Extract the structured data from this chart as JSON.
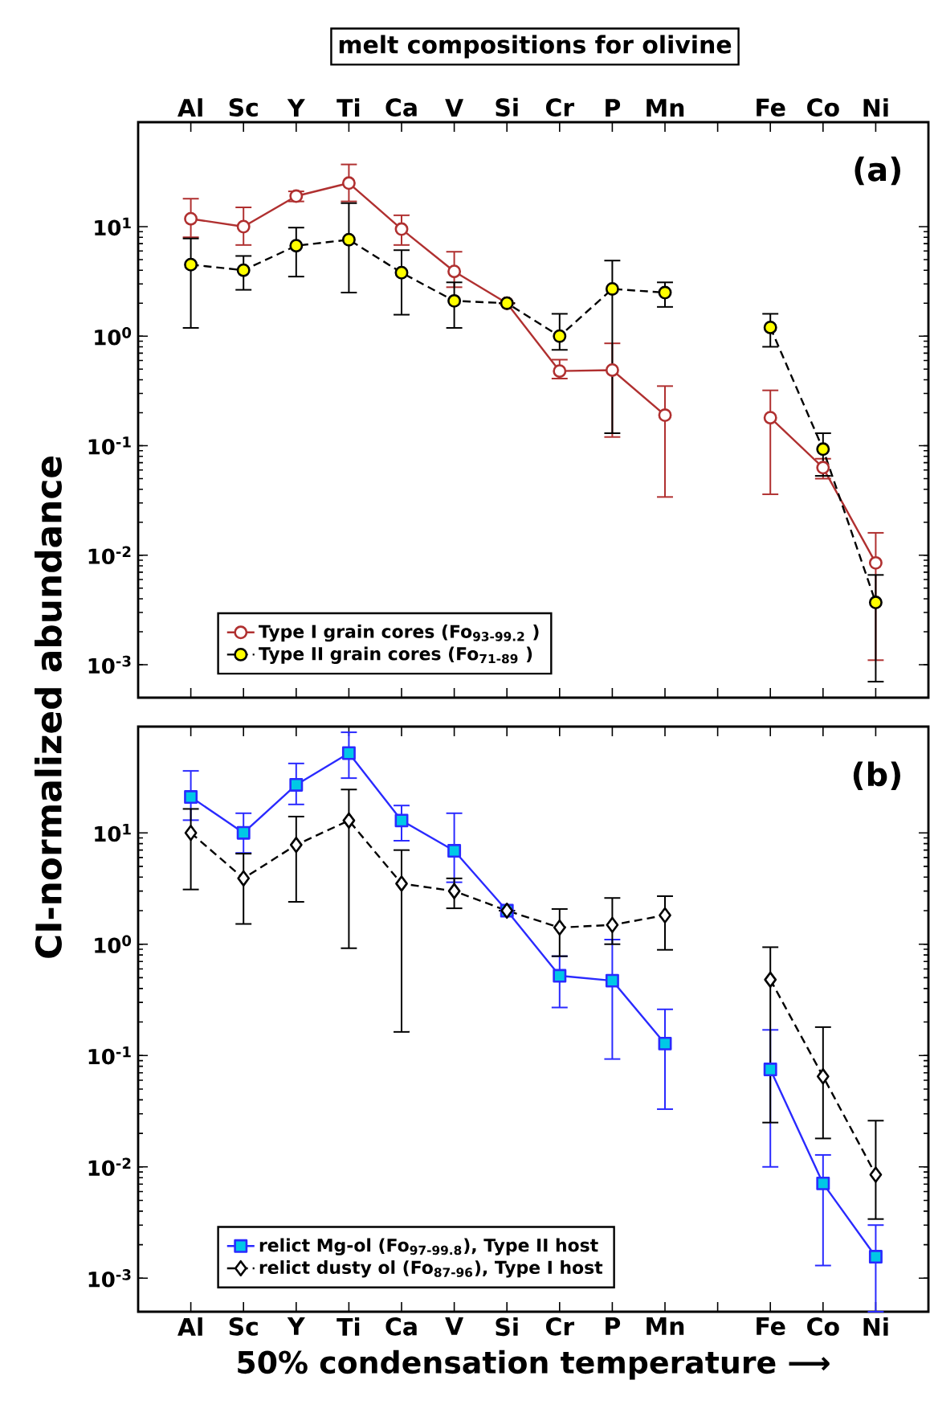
{
  "chart_data": [
    {
      "type": "line",
      "title": "melt compositions for olivine",
      "ylabel": "CI-normalized abundance",
      "categories": [
        "Al",
        "Sc",
        "Y",
        "Ti",
        "Ca",
        "V",
        "Si",
        "Cr",
        "P",
        "Mn",
        null,
        "Fe",
        "Co",
        "Ni"
      ],
      "log": "y",
      "ylim": [
        0.0005,
        90
      ],
      "yticks": [
        {
          "value": 0.001,
          "label": "10$^{-3}$"
        },
        {
          "value": 0.01,
          "label": "10$^{-2}$"
        },
        {
          "value": 0.1,
          "label": "10$^{-1}$"
        },
        {
          "value": 1,
          "label": "10$^{0}$"
        },
        {
          "value": 10,
          "label": "10$^{1}$"
        }
      ],
      "legend": "bottom left",
      "annotations": [
        "(a)"
      ],
      "series": [
        {
          "name": "Type I grain cores (Fo$_{93-99.2}$ )",
          "color": "#b03030",
          "marker": "circle",
          "line_style": "solid",
          "values": [
            11.8,
            10,
            19,
            25,
            9.5,
            3.9,
            2.0,
            0.48,
            0.49,
            0.19,
            null,
            0.18,
            0.063,
            0.0085
          ],
          "errors": [
            [
              8,
              18
            ],
            [
              6.8,
              15
            ],
            [
              17,
              21
            ],
            [
              17,
              37
            ],
            [
              6.8,
              12.7
            ],
            [
              2.8,
              5.9
            ],
            null,
            [
              0.41,
              0.61
            ],
            [
              0.12,
              0.86
            ],
            [
              0.034,
              0.35
            ],
            null,
            [
              0.036,
              0.32
            ],
            [
              0.05,
              0.076
            ],
            [
              0.0011,
              0.016
            ]
          ]
        },
        {
          "name": "Type II grain cores (Fo$_{71-89}$ )",
          "color": "#000000",
          "colors": [
            "#ffff00",
            "#ffff00",
            "#ffff00",
            "#ffff00",
            "#ffff00",
            "#ffff00",
            "#ffff00",
            "#ffff00",
            "#ffff00",
            "#ffff00",
            null,
            "#ffff00",
            "#ffff00",
            "#ffff00"
          ],
          "marker": "circle",
          "line_style": "dashed",
          "values": [
            4.5,
            4.0,
            6.7,
            7.6,
            3.8,
            2.1,
            2.0,
            1.0,
            2.7,
            2.5,
            null,
            1.2,
            0.093,
            0.0037
          ],
          "errors": [
            [
              1.19,
              7.8
            ],
            [
              2.65,
              5.4
            ],
            [
              3.5,
              9.8
            ],
            [
              2.5,
              16.4
            ],
            [
              1.57,
              6.1
            ],
            [
              1.19,
              3.1
            ],
            null,
            [
              0.75,
              1.6
            ],
            [
              0.13,
              4.9
            ],
            [
              1.85,
              3.1
            ],
            null,
            [
              0.8,
              1.6
            ],
            [
              0.053,
              0.13
            ],
            [
              0.0007,
              0.0066
            ]
          ]
        }
      ]
    },
    {
      "type": "line",
      "xlabel": "50% condensation temperature ⟶",
      "categories": [
        "Al",
        "Sc",
        "Y",
        "Ti",
        "Ca",
        "V",
        "Si",
        "Cr",
        "P",
        "Mn",
        null,
        "Fe",
        "Co",
        "Ni"
      ],
      "log": "y",
      "ylim": [
        0.0005,
        90
      ],
      "yticks": [
        {
          "value": 0.001,
          "label": "10$^{-3}$"
        },
        {
          "value": 0.01,
          "label": "10$^{-2}$"
        },
        {
          "value": 0.1,
          "label": "10$^{-1}$"
        },
        {
          "value": 1,
          "label": "10$^{0}$"
        },
        {
          "value": 10,
          "label": "10$^{1}$"
        }
      ],
      "legend": "bottom left",
      "annotations": [
        "(b)"
      ],
      "series": [
        {
          "name": "relict Mg-ol (Fo$_{97-99.8}$), Type II host",
          "color": "#2a2aff",
          "colors": [
            "#00c8e6",
            "#00c8e6",
            "#00c8e6",
            "#00c8e6",
            "#00c8e6",
            "#00c8e6",
            "#00c8e6",
            "#00c8e6",
            "#00c8e6",
            "#00c8e6",
            null,
            "#00c8e6",
            "#00c8e6",
            "#00c8e6"
          ],
          "marker": "square",
          "line_style": "solid",
          "values": [
            21,
            10,
            27,
            52,
            12.9,
            6.9,
            2.0,
            0.52,
            0.47,
            0.128,
            null,
            0.075,
            0.0071,
            0.00156
          ],
          "errors": [
            [
              13,
              36
            ],
            [
              6.6,
              15
            ],
            [
              18,
              42
            ],
            [
              31,
              80
            ],
            [
              8.5,
              17.6
            ],
            [
              3.6,
              15
            ],
            null,
            [
              0.27,
              0.78
            ],
            [
              0.093,
              1.1
            ],
            [
              0.033,
              0.26
            ],
            null,
            [
              0.01,
              0.17
            ],
            [
              0.0013,
              0.0128
            ],
            [
              0.0005,
              0.003
            ]
          ]
        },
        {
          "name": "relict dusty ol (Fo$_{87-96}$), Type I host",
          "color": "#000000",
          "marker": "diamond",
          "line_style": "dashed",
          "values": [
            10,
            3.9,
            7.8,
            12.9,
            3.5,
            3.0,
            2.0,
            1.41,
            1.49,
            1.82,
            null,
            0.48,
            0.065,
            0.0085
          ],
          "errors": [
            [
              3.1,
              16.4
            ],
            [
              1.52,
              6.5
            ],
            [
              2.4,
              14
            ],
            [
              0.92,
              24.5
            ],
            [
              0.163,
              7.0
            ],
            [
              2.1,
              3.9
            ],
            null,
            [
              0.78,
              2.07
            ],
            [
              1.0,
              2.6
            ],
            [
              0.89,
              2.7
            ],
            null,
            [
              0.025,
              0.94
            ],
            [
              0.018,
              0.18
            ],
            [
              0.0034,
              0.026
            ]
          ]
        }
      ]
    }
  ]
}
